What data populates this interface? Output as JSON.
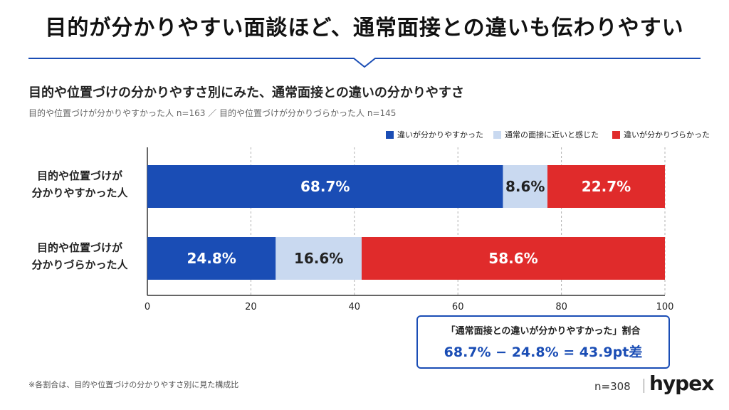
{
  "headline": "目的が分かりやすい面談ほど、通常面接との違いも伝わりやすい",
  "footnote": "※各割合は、目的や位置づけの分かりやすさ別に見た構成比",
  "sample_size": "n=308",
  "brand": "hypex",
  "colors": {
    "blue": "#1a4db5",
    "light": "#c9d9f0",
    "red": "#e02b2b",
    "accent_line": "#1a4db5"
  },
  "callout": {
    "title": "「通常面接との違いが分かりやすかった」割合",
    "formula": "68.7% − 24.8% = 43.9pt差"
  },
  "chart_data": {
    "type": "bar",
    "orientation": "horizontal",
    "stacked": true,
    "title": "目的や位置づけの分かりやすさ別にみた、通常面接との違いの分かりやすさ",
    "subtitle": "目的や位置づけが分かりやすかった人 n=163 ／ 目的や位置づけが分かりづらかった人 n=145",
    "categories": [
      [
        "目的や位置づけが",
        "分かりやすかった人"
      ],
      [
        "目的や位置づけが",
        "分かりづらかった人"
      ]
    ],
    "series": [
      {
        "name": "違いが分かりやすかった",
        "color": "#1a4db5",
        "values": [
          68.7,
          24.8
        ],
        "labels": [
          "68.7%",
          "24.8%"
        ],
        "label_color": "#ffffff"
      },
      {
        "name": "通常の面接に近いと感じた",
        "color": "#c9d9f0",
        "values": [
          8.6,
          16.6
        ],
        "labels": [
          "8.6%",
          "16.6%"
        ],
        "label_color": "#222222"
      },
      {
        "name": "違いが分かりづらかった",
        "color": "#e02b2b",
        "values": [
          22.7,
          58.6
        ],
        "labels": [
          "22.7%",
          "58.6%"
        ],
        "label_color": "#ffffff"
      }
    ],
    "xlim": [
      0,
      100
    ],
    "xticks": [
      "0",
      "20",
      "40",
      "60",
      "80",
      "100"
    ],
    "grid": "dashed vertical",
    "legend_position": "top-right"
  }
}
